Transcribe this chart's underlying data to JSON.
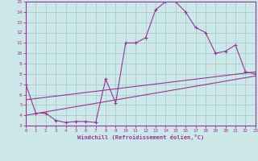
{
  "xlabel": "Windchill (Refroidissement éolien,°C)",
  "xlim": [
    0,
    23
  ],
  "ylim": [
    3,
    15
  ],
  "yticks": [
    3,
    4,
    5,
    6,
    7,
    8,
    9,
    10,
    11,
    12,
    13,
    14,
    15
  ],
  "xticks": [
    0,
    1,
    2,
    3,
    4,
    5,
    6,
    7,
    8,
    9,
    10,
    11,
    12,
    13,
    14,
    15,
    16,
    17,
    18,
    19,
    20,
    21,
    22,
    23
  ],
  "line_color": "#993399",
  "bg_color": "#cce8e8",
  "grid_color": "#aacccc",
  "curve_x": [
    0,
    1,
    2,
    3,
    4,
    5,
    6,
    7,
    8,
    9,
    10,
    11,
    12,
    13,
    14,
    15,
    16,
    17,
    18,
    19,
    20,
    21,
    22,
    23
  ],
  "curve_y": [
    7.0,
    4.2,
    4.2,
    3.5,
    3.3,
    3.4,
    3.4,
    3.3,
    7.5,
    5.2,
    11.0,
    11.0,
    11.5,
    14.2,
    15.0,
    15.0,
    14.0,
    12.5,
    12.0,
    10.0,
    10.2,
    10.8,
    8.2,
    8.0
  ],
  "line1_x": [
    0,
    23
  ],
  "line1_y": [
    5.5,
    8.2
  ],
  "line2_x": [
    0,
    23
  ],
  "line2_y": [
    4.0,
    7.8
  ]
}
